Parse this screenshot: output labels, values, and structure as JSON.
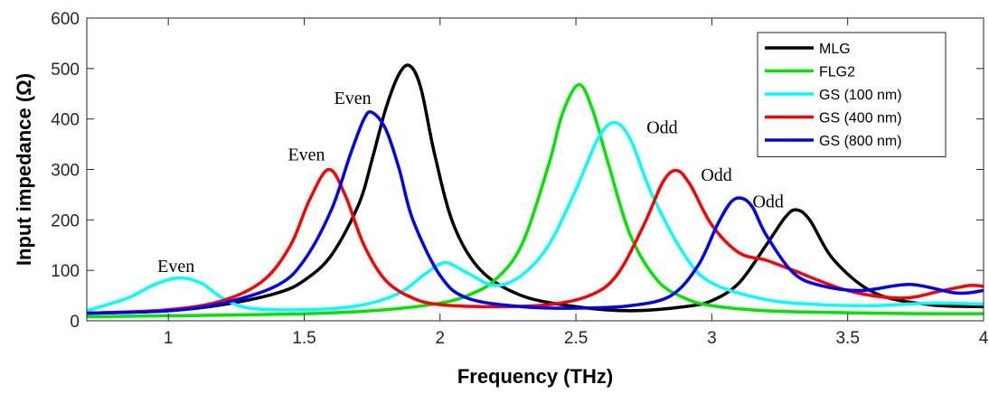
{
  "chart_data": {
    "type": "line",
    "title": "",
    "xlabel": "Frequency (THz)",
    "ylabel": "Input impedance (Ω)",
    "xlim": [
      0.7,
      4.0
    ],
    "ylim": [
      0,
      600
    ],
    "xticks": [
      1,
      1.5,
      2,
      2.5,
      3,
      3.5,
      4
    ],
    "xtick_labels": [
      "1",
      "1.5",
      "2",
      "2.5",
      "3",
      "3.5",
      "4"
    ],
    "yticks": [
      0,
      100,
      200,
      300,
      400,
      500,
      600
    ],
    "ytick_labels": [
      "0",
      "100",
      "200",
      "300",
      "400",
      "500",
      "600"
    ],
    "grid": false,
    "legend_position": "top-right",
    "series": [
      {
        "name": "MLG",
        "color": "#000000",
        "x": [
          0.7,
          1.0,
          1.2,
          1.4,
          1.5,
          1.6,
          1.7,
          1.75,
          1.8,
          1.85,
          1.89,
          1.93,
          1.98,
          2.05,
          2.15,
          2.3,
          2.5,
          2.7,
          2.9,
          3.0,
          3.1,
          3.2,
          3.27,
          3.31,
          3.36,
          3.45,
          3.6,
          3.8,
          4.0
        ],
        "y": [
          15,
          20,
          32,
          55,
          80,
          130,
          230,
          320,
          420,
          490,
          505,
          460,
          330,
          190,
          100,
          50,
          28,
          20,
          28,
          40,
          75,
          150,
          205,
          220,
          200,
          120,
          55,
          32,
          28
        ]
      },
      {
        "name": "FLG2",
        "color": "#00e600",
        "x": [
          0.7,
          1.0,
          1.5,
          1.8,
          2.0,
          2.1,
          2.2,
          2.3,
          2.4,
          2.45,
          2.51,
          2.56,
          2.62,
          2.7,
          2.8,
          2.9,
          3.0,
          3.2,
          3.5,
          3.8,
          4.0
        ],
        "y": [
          8,
          10,
          14,
          22,
          35,
          50,
          80,
          150,
          310,
          410,
          468,
          420,
          310,
          170,
          80,
          45,
          30,
          20,
          16,
          14,
          14
        ]
      },
      {
        "name": "GS (100 nm)",
        "color": "#00ffff",
        "x": [
          0.7,
          0.85,
          0.95,
          1.04,
          1.12,
          1.2,
          1.3,
          1.5,
          1.7,
          1.85,
          1.95,
          2.02,
          2.1,
          2.2,
          2.3,
          2.4,
          2.5,
          2.58,
          2.64,
          2.7,
          2.78,
          2.9,
          3.0,
          3.2,
          3.4,
          3.6,
          3.8,
          4.0
        ],
        "y": [
          20,
          45,
          72,
          85,
          75,
          45,
          25,
          22,
          30,
          55,
          95,
          115,
          95,
          70,
          90,
          150,
          260,
          360,
          393,
          360,
          250,
          130,
          75,
          42,
          32,
          30,
          35,
          33
        ]
      },
      {
        "name": "GS (400 nm)",
        "color": "#ff0000",
        "x": [
          0.7,
          1.0,
          1.2,
          1.35,
          1.45,
          1.52,
          1.59,
          1.65,
          1.72,
          1.8,
          1.9,
          2.0,
          2.2,
          2.4,
          2.55,
          2.65,
          2.75,
          2.82,
          2.87,
          2.92,
          3.0,
          3.1,
          3.2,
          3.3,
          3.5,
          3.7,
          3.85,
          3.95,
          4.0
        ],
        "y": [
          15,
          22,
          40,
          80,
          150,
          240,
          300,
          250,
          150,
          80,
          45,
          32,
          28,
          32,
          50,
          90,
          190,
          275,
          298,
          270,
          190,
          135,
          120,
          100,
          60,
          45,
          60,
          70,
          68
        ]
      },
      {
        "name": "GS (800 nm)",
        "color": "#0000ff",
        "x": [
          0.7,
          1.0,
          1.2,
          1.4,
          1.5,
          1.6,
          1.67,
          1.72,
          1.75,
          1.8,
          1.85,
          1.9,
          2.0,
          2.1,
          2.3,
          2.5,
          2.7,
          2.85,
          2.95,
          3.02,
          3.07,
          3.11,
          3.15,
          3.2,
          3.3,
          3.4,
          3.55,
          3.73,
          3.9,
          4.0
        ],
        "y": [
          15,
          20,
          35,
          70,
          120,
          220,
          330,
          400,
          413,
          380,
          300,
          200,
          90,
          45,
          28,
          25,
          30,
          50,
          110,
          190,
          235,
          243,
          225,
          170,
          95,
          70,
          60,
          72,
          55,
          60
        ]
      }
    ],
    "annotations": [
      {
        "text": "Even",
        "x": 0.96,
        "y": 97
      },
      {
        "text": "Even",
        "x": 1.44,
        "y": 318
      },
      {
        "text": "Even",
        "x": 1.61,
        "y": 430
      },
      {
        "text": "Odd",
        "x": 2.76,
        "y": 372
      },
      {
        "text": "Odd",
        "x": 2.96,
        "y": 278
      },
      {
        "text": "Odd",
        "x": 3.15,
        "y": 225
      }
    ]
  }
}
